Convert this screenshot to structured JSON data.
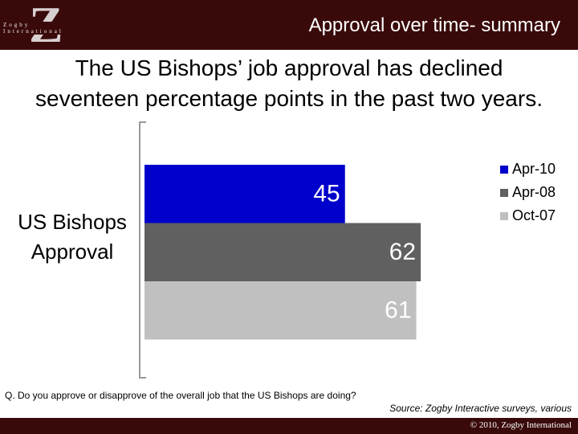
{
  "header": {
    "logo": "Z",
    "brand": "Zogby International",
    "title": "Approval over time- summary"
  },
  "chart_data": {
    "type": "bar",
    "orientation": "horizontal",
    "title": "The US Bishops’ job approval has declined seventeen percentage points in the past two years.",
    "categories": [
      "US Bishops Approval"
    ],
    "series": [
      {
        "name": "Apr-10",
        "color": "#0000cc",
        "values": [
          45
        ]
      },
      {
        "name": "Apr-08",
        "color": "#606060",
        "values": [
          62
        ]
      },
      {
        "name": "Oct-07",
        "color": "#c0c0c0",
        "values": [
          61
        ]
      }
    ],
    "legend": "top-right"
  },
  "question": "Q. Do you approve or disapprove of the overall job that the US Bishops are doing?",
  "source": "Source: Zogby Interactive surveys, various",
  "copyright": "© 2010, Zogby International"
}
